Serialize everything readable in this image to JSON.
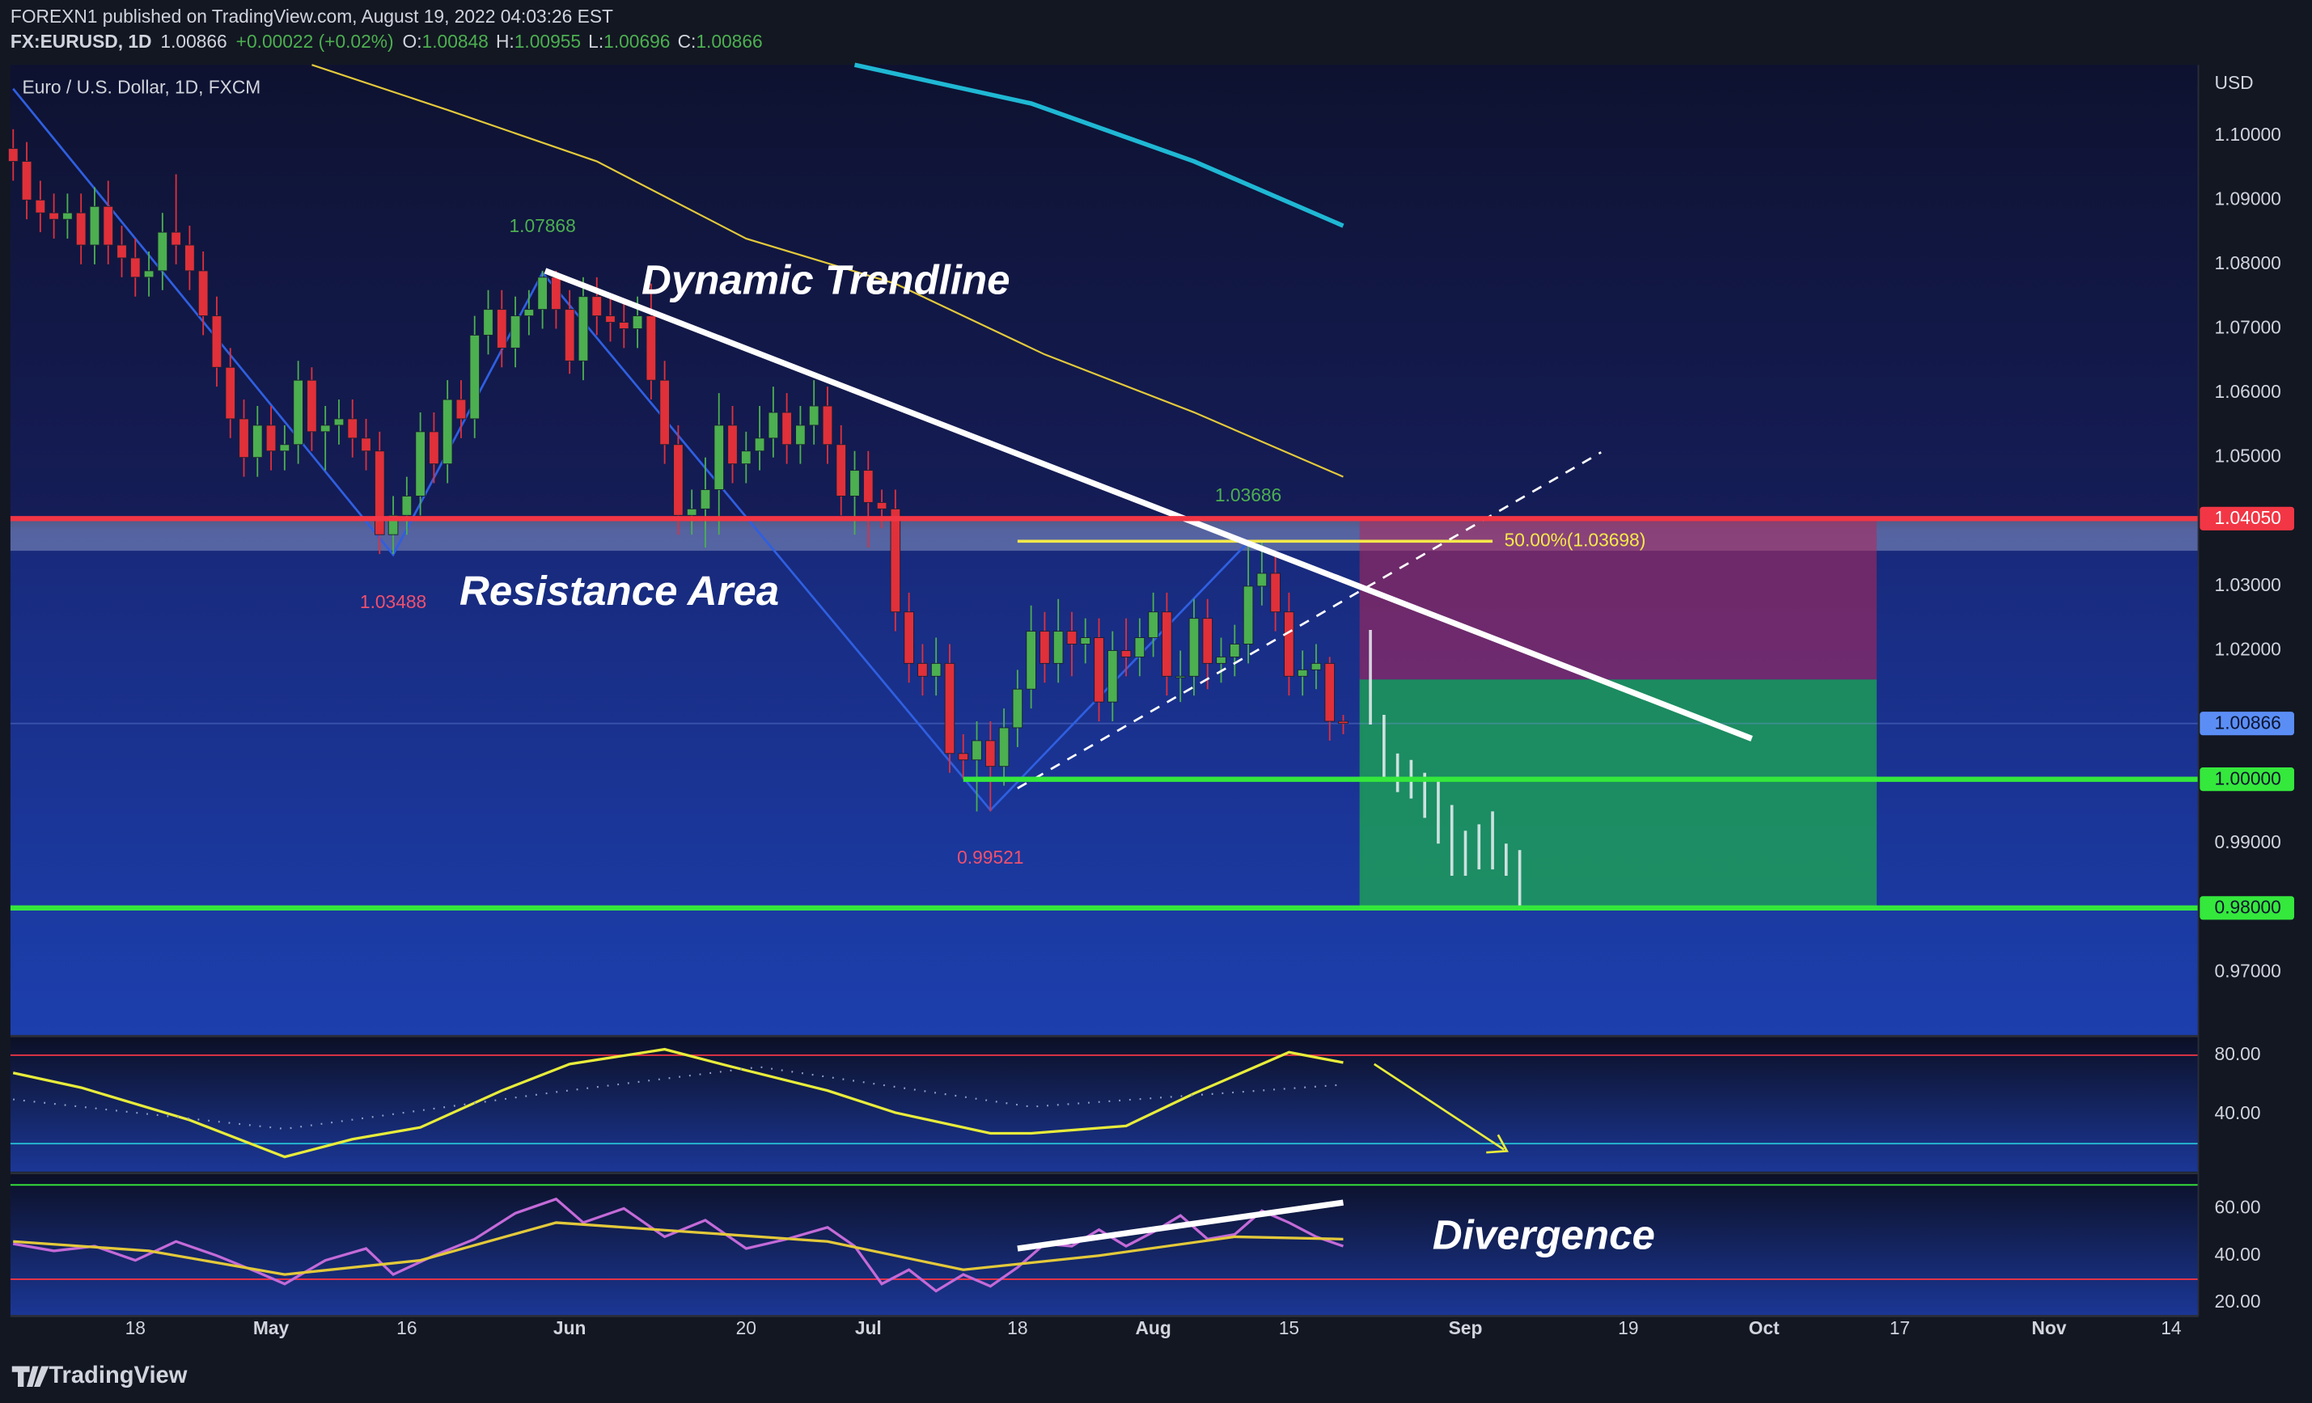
{
  "header": {
    "publisher": "FOREXN1 published on TradingView.com, August 19, 2022 04:03:26 EST",
    "symbol": "FX:EURUSD, 1D",
    "last": "1.00866",
    "change": "+0.00022 (+0.02%)",
    "ohlc": [
      {
        "key": "O:",
        "value": "1.00848"
      },
      {
        "key": "H:",
        "value": "1.00955"
      },
      {
        "key": "L:",
        "value": "1.00696"
      },
      {
        "key": "C:",
        "value": "1.00866"
      }
    ]
  },
  "footer": "TradingView",
  "chart_data": [
    {
      "type": "candlestick",
      "title": "Euro / U.S. Dollar, 1D, FXCM",
      "y_axis_label": "USD",
      "up_color": "#4caf50",
      "down_color": "#e0303a",
      "xlim": [
        -0.2,
        161
      ],
      "ylim": [
        0.9601,
        1.111
      ],
      "xticks": [
        {
          "value": 9,
          "label": "18"
        },
        {
          "value": 19,
          "label": "May"
        },
        {
          "value": 29,
          "label": "16"
        },
        {
          "value": 41,
          "label": "Jun"
        },
        {
          "value": 54,
          "label": "20"
        },
        {
          "value": 63,
          "label": "Jul"
        },
        {
          "value": 74,
          "label": "18"
        },
        {
          "value": 84,
          "label": "Aug"
        },
        {
          "value": 94,
          "label": "15"
        },
        {
          "value": 107,
          "label": "Sep"
        },
        {
          "value": 119,
          "label": "19"
        },
        {
          "value": 129,
          "label": "Oct"
        },
        {
          "value": 139,
          "label": "17"
        },
        {
          "value": 150,
          "label": "Nov"
        },
        {
          "value": 159,
          "label": "14"
        }
      ],
      "yticks": [
        {
          "value": 1.1,
          "label": "1.10000"
        },
        {
          "value": 1.09,
          "label": "1.09000"
        },
        {
          "value": 1.08,
          "label": "1.08000"
        },
        {
          "value": 1.07,
          "label": "1.07000"
        },
        {
          "value": 1.06,
          "label": "1.06000"
        },
        {
          "value": 1.05,
          "label": "1.05000"
        },
        {
          "value": 1.03,
          "label": "1.03000"
        },
        {
          "value": 1.02,
          "label": "1.02000"
        },
        {
          "value": 0.99,
          "label": "0.99000"
        },
        {
          "value": 0.97,
          "label": "0.97000"
        }
      ],
      "candles": [
        [
          1.098,
          1.101,
          1.093,
          1.096
        ],
        [
          1.096,
          1.099,
          1.087,
          1.09
        ],
        [
          1.09,
          1.093,
          1.085,
          1.088
        ],
        [
          1.088,
          1.091,
          1.084,
          1.087
        ],
        [
          1.087,
          1.091,
          1.084,
          1.088
        ],
        [
          1.088,
          1.091,
          1.08,
          1.083
        ],
        [
          1.083,
          1.092,
          1.08,
          1.089
        ],
        [
          1.089,
          1.093,
          1.08,
          1.083
        ],
        [
          1.083,
          1.086,
          1.078,
          1.081
        ],
        [
          1.081,
          1.084,
          1.075,
          1.078
        ],
        [
          1.078,
          1.082,
          1.075,
          1.079
        ],
        [
          1.079,
          1.088,
          1.076,
          1.085
        ],
        [
          1.085,
          1.094,
          1.08,
          1.083
        ],
        [
          1.083,
          1.086,
          1.076,
          1.079
        ],
        [
          1.079,
          1.082,
          1.069,
          1.072
        ],
        [
          1.072,
          1.075,
          1.061,
          1.064
        ],
        [
          1.064,
          1.067,
          1.053,
          1.056
        ],
        [
          1.056,
          1.059,
          1.047,
          1.05
        ],
        [
          1.05,
          1.058,
          1.047,
          1.055
        ],
        [
          1.055,
          1.058,
          1.048,
          1.051
        ],
        [
          1.051,
          1.055,
          1.048,
          1.052
        ],
        [
          1.052,
          1.065,
          1.049,
          1.062
        ],
        [
          1.062,
          1.064,
          1.051,
          1.054
        ],
        [
          1.054,
          1.058,
          1.048,
          1.055
        ],
        [
          1.055,
          1.059,
          1.052,
          1.056
        ],
        [
          1.056,
          1.059,
          1.05,
          1.053
        ],
        [
          1.053,
          1.056,
          1.048,
          1.051
        ],
        [
          1.051,
          1.054,
          1.035,
          1.038
        ],
        [
          1.038,
          1.044,
          1.035,
          1.041
        ],
        [
          1.041,
          1.047,
          1.038,
          1.044
        ],
        [
          1.044,
          1.057,
          1.041,
          1.054
        ],
        [
          1.054,
          1.057,
          1.046,
          1.049
        ],
        [
          1.049,
          1.062,
          1.046,
          1.059
        ],
        [
          1.059,
          1.062,
          1.053,
          1.056
        ],
        [
          1.056,
          1.072,
          1.053,
          1.069
        ],
        [
          1.069,
          1.076,
          1.066,
          1.073
        ],
        [
          1.073,
          1.076,
          1.064,
          1.067
        ],
        [
          1.067,
          1.075,
          1.064,
          1.072
        ],
        [
          1.072,
          1.076,
          1.069,
          1.073
        ],
        [
          1.073,
          1.079,
          1.07,
          1.078
        ],
        [
          1.078,
          1.079,
          1.07,
          1.073
        ],
        [
          1.073,
          1.076,
          1.063,
          1.065
        ],
        [
          1.065,
          1.078,
          1.062,
          1.075
        ],
        [
          1.075,
          1.078,
          1.069,
          1.072
        ],
        [
          1.072,
          1.075,
          1.068,
          1.071
        ],
        [
          1.071,
          1.074,
          1.067,
          1.07
        ],
        [
          1.07,
          1.075,
          1.067,
          1.072
        ],
        [
          1.072,
          1.077,
          1.059,
          1.062
        ],
        [
          1.062,
          1.065,
          1.049,
          1.052
        ],
        [
          1.052,
          1.055,
          1.038,
          1.041
        ],
        [
          1.041,
          1.045,
          1.038,
          1.042
        ],
        [
          1.042,
          1.05,
          1.036,
          1.045
        ],
        [
          1.045,
          1.06,
          1.038,
          1.055
        ],
        [
          1.055,
          1.058,
          1.046,
          1.049
        ],
        [
          1.049,
          1.054,
          1.046,
          1.051
        ],
        [
          1.051,
          1.058,
          1.048,
          1.053
        ],
        [
          1.053,
          1.061,
          1.05,
          1.057
        ],
        [
          1.057,
          1.06,
          1.049,
          1.052
        ],
        [
          1.052,
          1.058,
          1.049,
          1.055
        ],
        [
          1.055,
          1.062,
          1.052,
          1.058
        ],
        [
          1.058,
          1.061,
          1.049,
          1.052
        ],
        [
          1.052,
          1.055,
          1.041,
          1.044
        ],
        [
          1.044,
          1.051,
          1.038,
          1.048
        ],
        [
          1.048,
          1.051,
          1.036,
          1.043
        ],
        [
          1.043,
          1.045,
          1.039,
          1.042
        ],
        [
          1.042,
          1.045,
          1.023,
          1.026
        ],
        [
          1.026,
          1.029,
          1.015,
          1.018
        ],
        [
          1.018,
          1.021,
          1.013,
          1.016
        ],
        [
          1.016,
          1.022,
          1.013,
          1.018
        ],
        [
          1.018,
          1.021,
          1.001,
          1.004
        ],
        [
          1.004,
          1.007,
          1.0,
          1.003
        ],
        [
          1.003,
          1.009,
          0.995,
          1.006
        ],
        [
          1.006,
          1.009,
          0.995,
          1.002
        ],
        [
          1.002,
          1.011,
          0.999,
          1.008
        ],
        [
          1.008,
          1.017,
          1.005,
          1.014
        ],
        [
          1.014,
          1.027,
          1.011,
          1.023
        ],
        [
          1.023,
          1.026,
          1.015,
          1.018
        ],
        [
          1.018,
          1.028,
          1.015,
          1.023
        ],
        [
          1.023,
          1.026,
          1.016,
          1.021
        ],
        [
          1.021,
          1.025,
          1.018,
          1.022
        ],
        [
          1.022,
          1.025,
          1.009,
          1.012
        ],
        [
          1.012,
          1.023,
          1.009,
          1.02
        ],
        [
          1.02,
          1.025,
          1.016,
          1.019
        ],
        [
          1.019,
          1.025,
          1.016,
          1.022
        ],
        [
          1.022,
          1.029,
          1.019,
          1.026
        ],
        [
          1.026,
          1.029,
          1.013,
          1.016
        ],
        [
          1.016,
          1.02,
          1.012,
          1.016
        ],
        [
          1.016,
          1.028,
          1.013,
          1.025
        ],
        [
          1.025,
          1.028,
          1.014,
          1.018
        ],
        [
          1.018,
          1.022,
          1.015,
          1.019
        ],
        [
          1.019,
          1.024,
          1.016,
          1.021
        ],
        [
          1.021,
          1.037,
          1.018,
          1.03
        ],
        [
          1.03,
          1.037,
          1.027,
          1.032
        ],
        [
          1.032,
          1.035,
          1.023,
          1.026
        ],
        [
          1.026,
          1.029,
          1.013,
          1.016
        ],
        [
          1.016,
          1.02,
          1.013,
          1.017
        ],
        [
          1.017,
          1.021,
          1.014,
          1.018
        ],
        [
          1.018,
          1.019,
          1.006,
          1.009
        ],
        [
          1.009,
          1.01,
          1.007,
          1.00866
        ]
      ],
      "moving_averages": [
        {
          "color": "#e3c93a",
          "x": [
            22,
            32,
            43,
            54,
            65,
            76,
            87,
            98
          ],
          "values": [
            1.111,
            1.104,
            1.096,
            1.084,
            1.077,
            1.066,
            1.057,
            1.047
          ]
        },
        {
          "color": "#1fb8d4",
          "x": [
            62,
            75,
            87,
            98
          ],
          "values": [
            1.111,
            1.105,
            1.096,
            1.086
          ]
        }
      ],
      "zigzag": {
        "color": "#2f5fe0",
        "x": [
          0,
          28,
          39,
          72,
          91
        ],
        "values": [
          1.1073,
          1.03488,
          1.07868,
          0.99521,
          1.03686
        ],
        "label_colors": [
          "#f0506e",
          "#4caf50",
          "#f0506e",
          "#4caf50"
        ]
      },
      "levels": [
        {
          "value": 1.0405,
          "label": "1.04050",
          "color": "#f23645"
        },
        {
          "value": 1.0,
          "label": "1.00000",
          "color": "#35e83c",
          "start": 70
        },
        {
          "value": 0.98,
          "label": "0.98000",
          "color": "#35e83c"
        }
      ],
      "current_price": {
        "value": 1.00866,
        "label": "1.00866",
        "color": "#5b8ef5"
      },
      "resistance_area": [
        1.0355,
        1.0405
      ],
      "trendline": {
        "x": [
          39.2,
          128.1
        ],
        "values": [
          1.079,
          1.0063
        ]
      },
      "channel": {
        "x": [
          74,
          117
        ],
        "values": [
          0.9986,
          1.0508
        ]
      },
      "fib": {
        "x": [
          74,
          109
        ],
        "value": 1.03698,
        "label": "50.00%(1.03698)",
        "color": "#f5e94a"
      },
      "position": {
        "x": [
          99.2,
          137.3
        ],
        "stop": 1.0405,
        "entry": 1.0155,
        "target": 0.98
      },
      "projection": {
        "x": [
          100,
          101,
          102,
          103,
          104,
          105,
          106,
          107,
          108,
          109,
          110,
          111
        ],
        "highs": [
          1.0232,
          1.01,
          1.004,
          1.003,
          1.001,
          1.0,
          0.996,
          0.992,
          0.993,
          0.995,
          0.99,
          0.989
        ],
        "lows": [
          1.0085,
          1.0,
          0.998,
          0.997,
          0.994,
          0.99,
          0.985,
          0.985,
          0.986,
          0.986,
          0.985,
          0.98
        ]
      },
      "annotations": [
        "Dynamic Trendline",
        "Resistance Area"
      ]
    },
    {
      "type": "line",
      "ylim": [
        0,
        93
      ],
      "yticks": [
        {
          "value": 80,
          "label": "80.00"
        },
        {
          "value": 40,
          "label": "40.00"
        }
      ],
      "bands": [
        {
          "value": 80,
          "color": "#f23645"
        },
        {
          "value": 20,
          "color": "#26c6da"
        }
      ],
      "series": [
        {
          "color": "#e8ec3a",
          "x": [
            0,
            5,
            13,
            20,
            25,
            30,
            36,
            41,
            48,
            53,
            60,
            65,
            72,
            75,
            82,
            87,
            94,
            98
          ],
          "values": [
            68,
            58,
            36,
            11,
            23,
            31,
            56,
            74,
            84,
            72,
            56,
            41,
            27,
            27,
            32,
            54,
            82,
            75
          ]
        },
        {
          "color": "#8fa0c8",
          "dotted": true,
          "x": [
            0,
            20,
            40,
            55,
            75,
            98
          ],
          "values": [
            50,
            30,
            55,
            72,
            45,
            60
          ]
        }
      ]
    },
    {
      "type": "line",
      "ylim": [
        14.4,
        75
      ],
      "yticks": [
        {
          "value": 60,
          "label": "60.00"
        },
        {
          "value": 40,
          "label": "40.00"
        },
        {
          "value": 20,
          "label": "20.00"
        }
      ],
      "bands": [
        {
          "value": 70,
          "color": "#35e83c"
        },
        {
          "value": 30,
          "color": "#f23645"
        }
      ],
      "series": [
        {
          "color": "#c46ad8",
          "x": [
            0,
            3,
            6,
            9,
            12,
            15,
            18,
            20,
            23,
            26,
            28,
            31,
            34,
            37,
            40,
            42,
            45,
            48,
            51,
            54,
            57,
            60,
            62,
            64,
            66,
            68,
            70,
            72,
            74,
            76,
            78,
            80,
            82,
            84,
            86,
            88,
            90,
            92,
            94,
            96,
            98
          ],
          "values": [
            45,
            42,
            44,
            38,
            46,
            40,
            33,
            28,
            38,
            43,
            32,
            40,
            47,
            58,
            64,
            54,
            60,
            48,
            55,
            43,
            47,
            52,
            44,
            28,
            34,
            25,
            32,
            27,
            35,
            45,
            44,
            51,
            44,
            50,
            57,
            47,
            49,
            59,
            54,
            48,
            44
          ]
        },
        {
          "color": "#e3c93a",
          "x": [
            0,
            10,
            20,
            30,
            40,
            50,
            60,
            70,
            80,
            90,
            98
          ],
          "values": [
            46,
            42,
            32,
            38,
            54,
            50,
            46,
            34,
            40,
            48,
            47
          ]
        }
      ],
      "divergence": {
        "x": [
          74,
          98
        ],
        "values": [
          43,
          62.5
        ]
      },
      "annotations": [
        "Divergence"
      ]
    }
  ]
}
